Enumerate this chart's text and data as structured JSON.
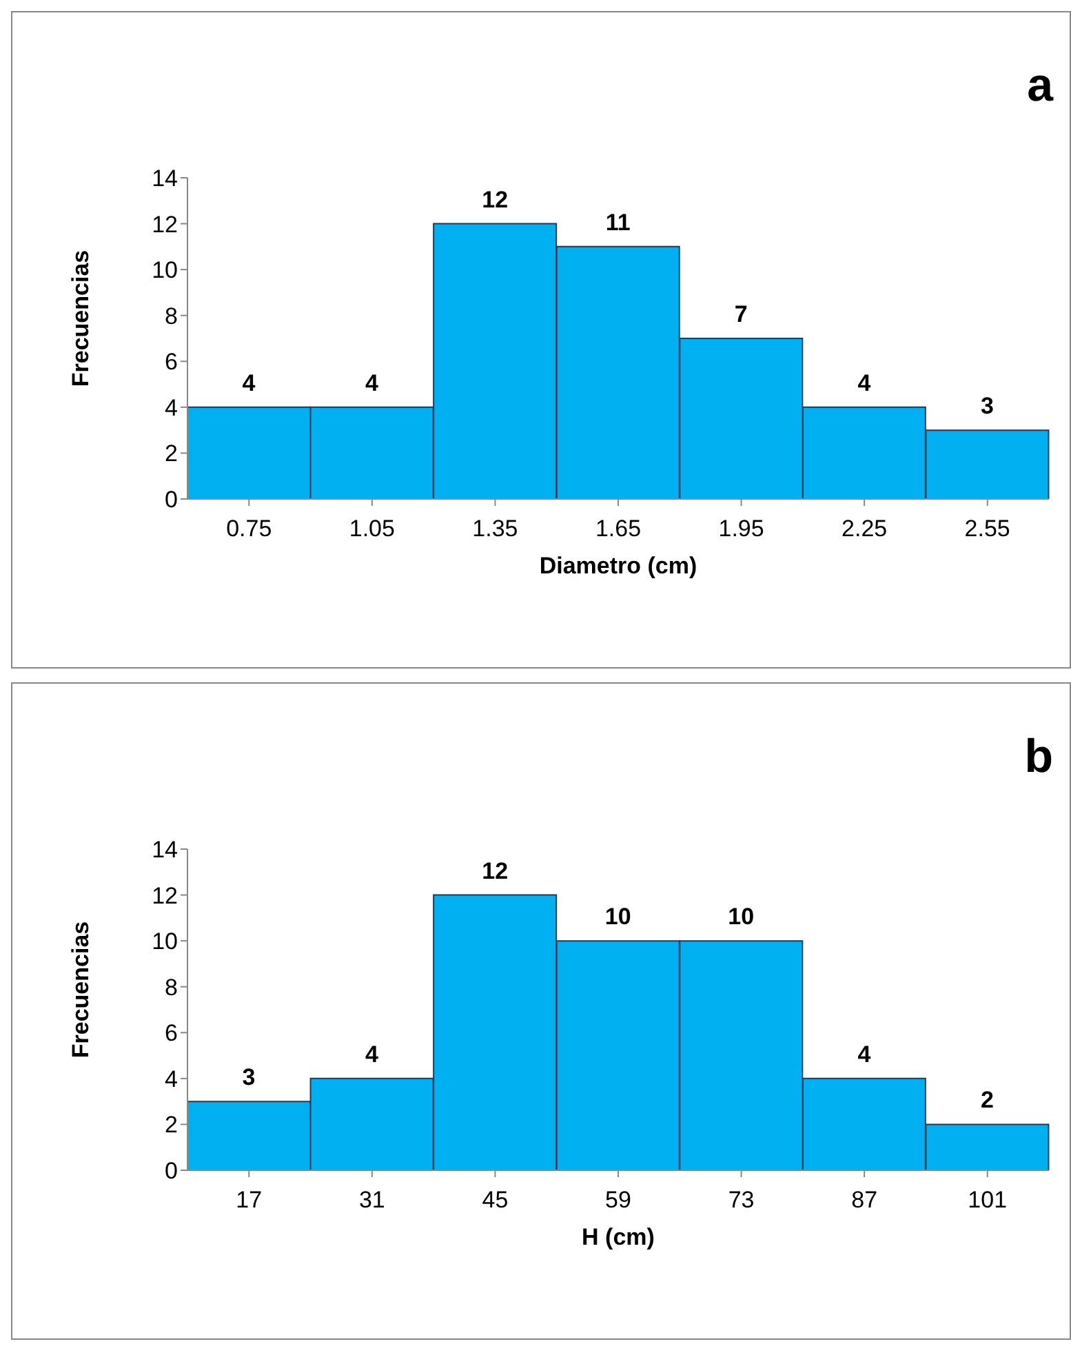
{
  "chart_data": [
    {
      "type": "bar",
      "title": "a",
      "xlabel": "Diametro (cm)",
      "ylabel": "Frecuencias",
      "categories": [
        "0.75",
        "1.05",
        "1.35",
        "1.65",
        "1.95",
        "2.25",
        "2.55"
      ],
      "values": [
        4,
        4,
        12,
        11,
        7,
        4,
        3
      ],
      "color": "#00b0f0",
      "ylim": [
        0,
        14
      ],
      "yticks": [
        0,
        2,
        4,
        6,
        8,
        10,
        12,
        14
      ],
      "data_labels": true,
      "grid": false,
      "legend": false
    },
    {
      "type": "bar",
      "title": "b",
      "xlabel": "H (cm)",
      "ylabel": "Frecuencias",
      "categories": [
        "17",
        "31",
        "45",
        "59",
        "73",
        "87",
        "101"
      ],
      "values": [
        3,
        4,
        12,
        10,
        10,
        4,
        2
      ],
      "color": "#00b0f0",
      "ylim": [
        0,
        14
      ],
      "yticks": [
        0,
        2,
        4,
        6,
        8,
        10,
        12,
        14
      ],
      "data_labels": true,
      "grid": false,
      "legend": false
    }
  ]
}
